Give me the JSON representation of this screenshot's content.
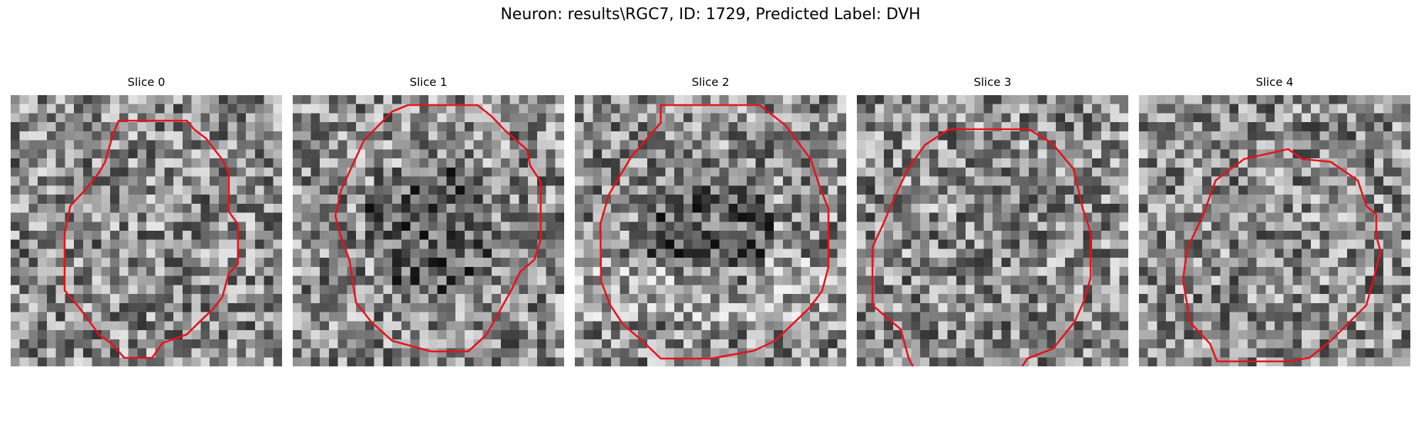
{
  "figure": {
    "title": "Neuron: results\\RGC7, ID: 1729, Predicted Label: DVH",
    "contour_color": "#e8111a",
    "colormap": "gray"
  },
  "panels": [
    {
      "label": "Slice 0"
    },
    {
      "label": "Slice 1"
    },
    {
      "label": "Slice 2"
    },
    {
      "label": "Slice 3"
    },
    {
      "label": "Slice 4"
    }
  ]
}
